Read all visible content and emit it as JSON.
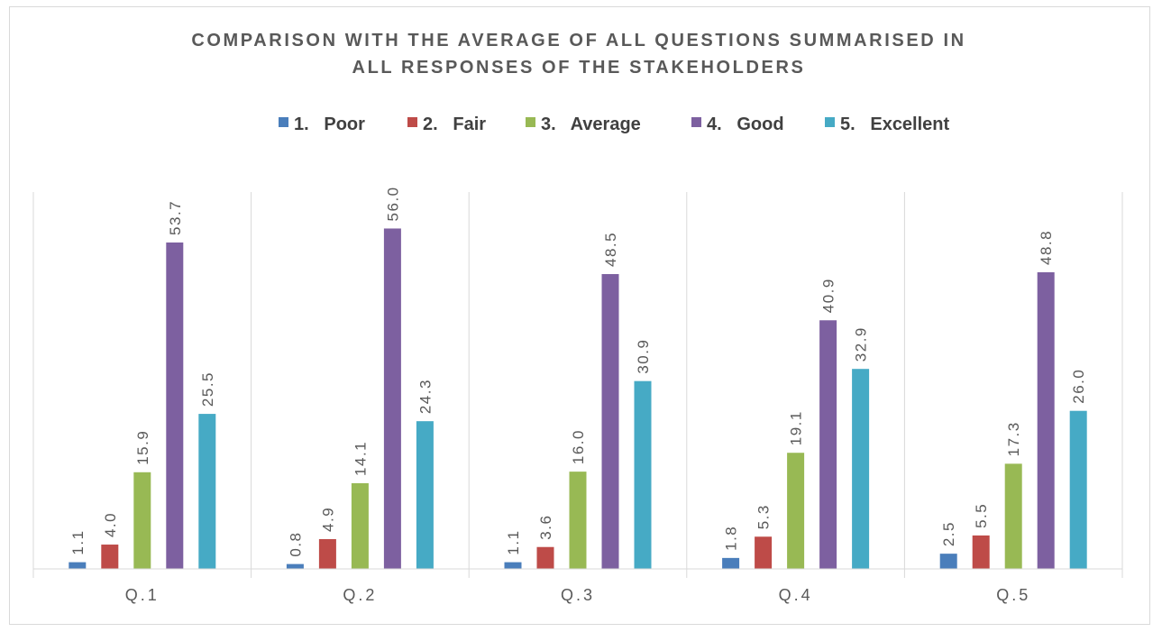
{
  "chart_data": {
    "type": "bar",
    "title_lines": [
      "COMPARISON WITH THE AVERAGE OF ALL QUESTIONS  SUMMARISED IN",
      "ALL RESPONSES OF THE STAKEHOLDERS"
    ],
    "categories": [
      "Q.1",
      "Q.2",
      "Q.3",
      "Q.4",
      "Q.5"
    ],
    "series": [
      {
        "name": "1.   Poor",
        "color": "#4a7ebb",
        "values": [
          1.1,
          0.8,
          1.1,
          1.8,
          2.5
        ],
        "labels": [
          "1.1",
          "0.8",
          "1.1",
          "1.8",
          "2.5"
        ]
      },
      {
        "name": "2.   Fair",
        "color": "#be4b48",
        "values": [
          4.0,
          4.9,
          3.6,
          5.3,
          5.5
        ],
        "labels": [
          "4.0",
          "4.9",
          "3.6",
          "5.3",
          "5.5"
        ]
      },
      {
        "name": "3.   Average",
        "color": "#98b954",
        "values": [
          15.9,
          14.1,
          16.0,
          19.1,
          17.3
        ],
        "labels": [
          "15.9",
          "14.1",
          "16.0",
          "19.1",
          "17.3"
        ]
      },
      {
        "name": "4.   Good",
        "color": "#7d60a0",
        "values": [
          53.7,
          56.0,
          48.5,
          40.9,
          48.8
        ],
        "labels": [
          "53.7",
          "56.0",
          "48.5",
          "40.9",
          "48.8"
        ]
      },
      {
        "name": "5.   Excellent",
        "color": "#46aac5",
        "values": [
          25.5,
          24.3,
          30.9,
          32.9,
          26.0
        ],
        "labels": [
          "25.5",
          "24.3",
          "30.9",
          "32.9",
          "26.0"
        ]
      }
    ],
    "ylim": [
      0,
      62
    ],
    "xlabel": "",
    "ylabel": "",
    "legend_position": "top-center",
    "grid": false
  }
}
